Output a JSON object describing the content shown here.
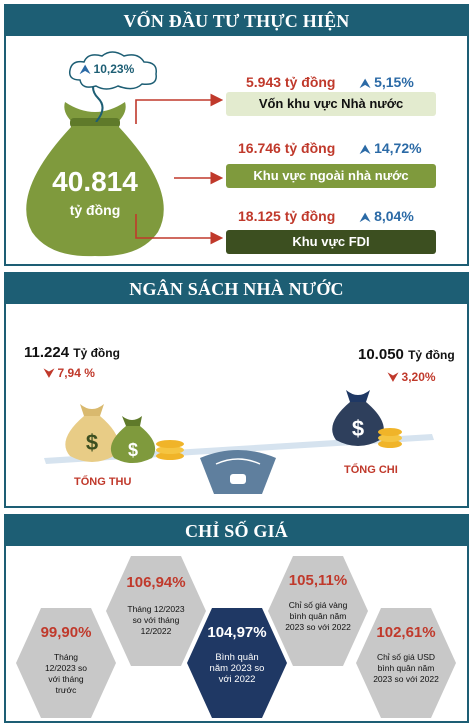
{
  "section1": {
    "title": "VỐN ĐẦU TƯ THỰC HIỆN",
    "total_value": "40.814",
    "total_unit": "tỷ đồng",
    "total_growth": "10,23%",
    "items": [
      {
        "amount": "5.943 tỷ đồng",
        "growth": "5,15%",
        "label": "Vốn khu vực Nhà nước"
      },
      {
        "amount": "16.746 tỷ đồng",
        "growth": "14,72%",
        "label": "Khu vực ngoài nhà nước"
      },
      {
        "amount": "18.125 tỷ đồng",
        "growth": "8,04%",
        "label": "Khu vực FDI"
      }
    ]
  },
  "section2": {
    "title": "NGÂN SÁCH NHÀ NƯỚC",
    "revenue_value": "11.224",
    "revenue_unit": "Tỷ đồng",
    "revenue_change": "7,94 %",
    "revenue_label": "TỔNG THU",
    "expense_value": "10.050",
    "expense_unit": "Tỷ đồng",
    "expense_change": "3,20%",
    "expense_label": "TỔNG CHI",
    "bag_symbol": "$"
  },
  "section3": {
    "title": "CHỈ SỐ GIÁ",
    "hexes": [
      {
        "pct": "99,90%",
        "label": "Tháng 12/2023 so với tháng trước"
      },
      {
        "pct": "106,94%",
        "label": "Tháng 12/2023 so với tháng 12/2022"
      },
      {
        "pct": "104,97%",
        "label": "Bình quân năm 2023 so với 2022"
      },
      {
        "pct": "105,11%",
        "label": "Chỉ số giá vàng bình quân năm 2023 so với 2022"
      },
      {
        "pct": "102,61%",
        "label": "Chỉ số giá USD bình quân năm 2023 so với 2022"
      }
    ]
  },
  "colors": {
    "band": "#1d5e74",
    "olive": "#7f9a3d",
    "dark_green": "#3c4f20",
    "light_green": "#e3ebcf",
    "red": "#c0392b",
    "blue": "#2b6aa6",
    "navy": "#1f3864",
    "grey": "#c8c8c8"
  }
}
